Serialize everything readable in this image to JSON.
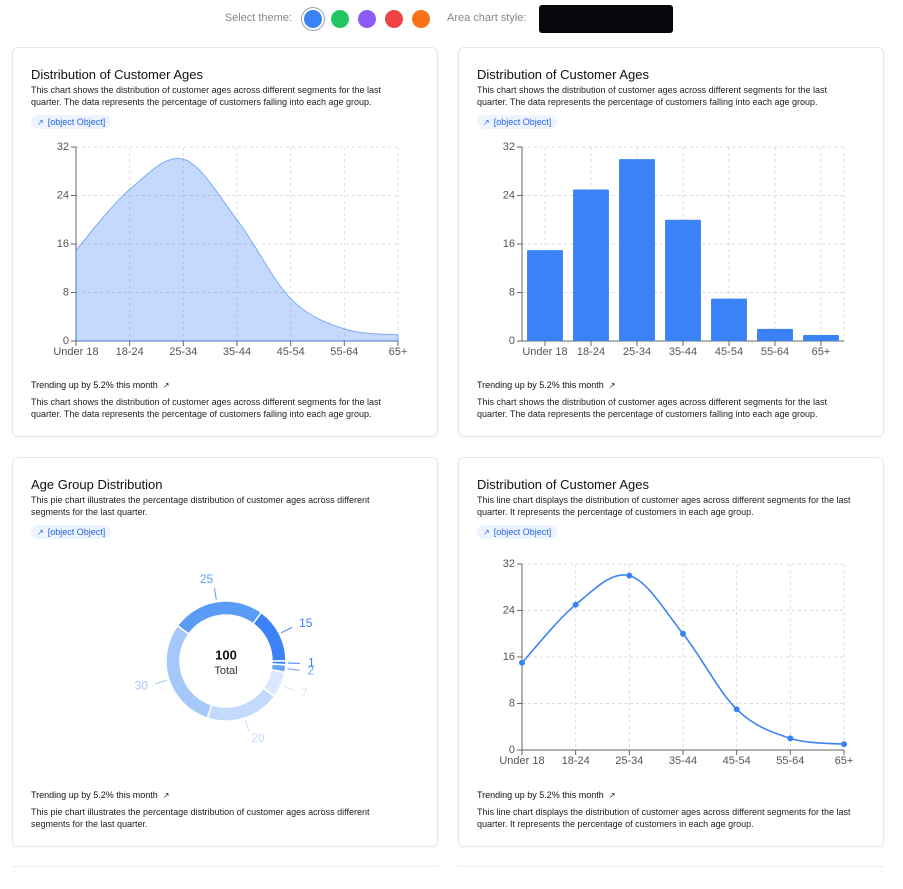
{
  "toolbar": {
    "theme_label": "Select theme:",
    "theme_colors": [
      "#3b82f6",
      "#22c55e",
      "#8b5cf6",
      "#ef4444",
      "#f97316"
    ],
    "style_label": "Area chart style:"
  },
  "cards": [
    {
      "link": "[object Object]",
      "trend": "Trending up by 5.2% this month",
      "footer": "This chart shows the distribution of customer ages across different segments for the last quarter. The data represents the percentage of customers falling into each age group."
    },
    {
      "link": "[object Object]",
      "trend": "Trending up by 5.2% this month",
      "footer": "This chart shows the distribution of customer ages across different segments for the last quarter. The data represents the percentage of customers falling into each age group."
    },
    {
      "link": "[object Object]",
      "trend": "Trending up by 5.2% this month",
      "footer": "This pie chart illustrates the percentage distribution of customer ages across different segments for the last quarter."
    },
    {
      "link": "[object Object]",
      "trend": "Trending up by 5.2% this month",
      "footer": "This line chart displays the distribution of customer ages across different segments for the last quarter. It represents the percentage of customers in each age group."
    }
  ],
  "chart_data": [
    {
      "type": "area",
      "title": "Distribution of Customer Ages",
      "subtitle": "This chart shows the distribution of customer ages across different segments for the last quarter. The data represents the percentage of customers falling into each age group.",
      "categories": [
        "Under 18",
        "18-24",
        "25-34",
        "35-44",
        "45-54",
        "55-64",
        "65+"
      ],
      "values": [
        15,
        25,
        30,
        20,
        7,
        2,
        1
      ],
      "color": "#3b82f6",
      "ylim": [
        0,
        32
      ],
      "yticks": [
        0,
        8,
        16,
        24,
        32
      ],
      "grid": true
    },
    {
      "type": "bar",
      "title": "Distribution of Customer Ages",
      "subtitle": "This chart shows the distribution of customer ages across different segments for the last quarter. The data represents the percentage of customers falling into each age group.",
      "categories": [
        "Under 18",
        "18-24",
        "25-34",
        "35-44",
        "45-54",
        "55-64",
        "65+"
      ],
      "values": [
        15,
        25,
        30,
        20,
        7,
        2,
        1
      ],
      "color": "#3b82f6",
      "ylim": [
        0,
        32
      ],
      "yticks": [
        0,
        8,
        16,
        24,
        32
      ],
      "grid": true
    },
    {
      "type": "pie",
      "title": "Age Group Distribution",
      "subtitle": "This pie chart illustrates the percentage distribution of customer ages across different segments for the last quarter.",
      "values": [
        15,
        25,
        30,
        20,
        7,
        2,
        1
      ],
      "colors": [
        "#3b82f6",
        "#5a9cf5",
        "#a5c8fb",
        "#c3dafc",
        "#dbe8fd",
        "#6aa6f8",
        "#3b82f6"
      ],
      "center_value": 100,
      "center_label": "Total"
    },
    {
      "type": "line",
      "title": "Distribution of Customer Ages",
      "subtitle": "This line chart displays the distribution of customer ages across different segments for the last quarter. It represents the percentage of customers in each age group.",
      "categories": [
        "Under 18",
        "18-24",
        "25-34",
        "35-44",
        "45-54",
        "55-64",
        "65+"
      ],
      "values": [
        15,
        25,
        30,
        20,
        7,
        2,
        1
      ],
      "color": "#3b82f6",
      "ylim": [
        0,
        32
      ],
      "yticks": [
        0,
        8,
        16,
        24,
        32
      ],
      "grid": true
    }
  ]
}
